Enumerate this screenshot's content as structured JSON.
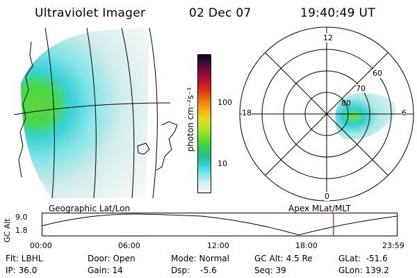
{
  "header": {
    "instrument": "Ultraviolet Imager",
    "date": "02 Dec 07",
    "time": "19:40:49 UT"
  },
  "geo_panel": {
    "label": "Geographic Lat/Lon"
  },
  "apex_panel": {
    "label": "Apex MLat/MLT",
    "mlt_labels": {
      "top": "12",
      "bottom": "0",
      "left": "18",
      "right": "6"
    },
    "lat_labels": [
      "60",
      "70",
      "80"
    ]
  },
  "colorbar": {
    "unit_label": "photon cm⁻²s⁻¹",
    "scale": "log",
    "tick_labels": [
      "100",
      "10"
    ],
    "colors": [
      "#f4f4f4",
      "#d7efee",
      "#7fe6e8",
      "#2fd3d8",
      "#20c28a",
      "#39d14a",
      "#6fe02a",
      "#b8e51c",
      "#e0de14",
      "#f4b20a",
      "#f07a08",
      "#e23a12",
      "#c21428",
      "#8c0a3a",
      "#4a0a40",
      "#120018"
    ]
  },
  "timeline": {
    "y_axis_label": "GC Alt",
    "y_ticks": [
      "9.0",
      "1.8"
    ],
    "x_ticks": [
      "00:00",
      "06:00",
      "12:00",
      "18:00",
      "23:59"
    ],
    "current_time_hours": 19.68,
    "marker_color": "#e00000"
  },
  "status": {
    "flt": "Flt: LBHL",
    "ip": "IP: 36.0",
    "door": "Door: Open",
    "gain": "Gain: 14",
    "mode": "Mode: Normal",
    "dsp": "Dsp:    -5.6",
    "gc_alt": "GC Alt: 4.5 Re",
    "seq": "Seq: 39",
    "glat": "GLat:  -51.6",
    "glon": "GLon: 139.2"
  }
}
